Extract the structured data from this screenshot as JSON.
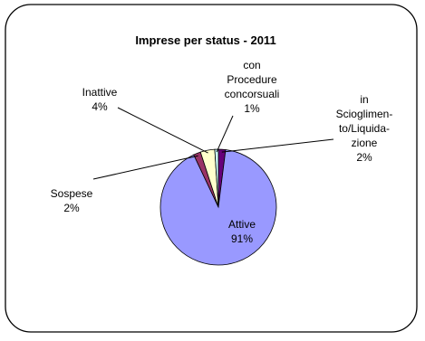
{
  "chart_data": {
    "type": "pie",
    "title": "Imprese per status - 2011",
    "start": "top",
    "direction": "clockwise",
    "slices": [
      {
        "label_lines": [
          "in",
          "Scioglimen-",
          "to/Liquida-",
          "zione"
        ],
        "percent_label": "2%",
        "value": 2,
        "color": "#66007a"
      },
      {
        "label_lines": [
          "Attive"
        ],
        "percent_label": "91%",
        "value": 91,
        "color": "#9999ff"
      },
      {
        "label_lines": [
          "Sospese"
        ],
        "percent_label": "2%",
        "value": 2,
        "color": "#993366"
      },
      {
        "label_lines": [
          "Inattive"
        ],
        "percent_label": "4%",
        "value": 4,
        "color": "#ffffcc"
      },
      {
        "label_lines": [
          "con",
          "Procedure",
          "concorsuali"
        ],
        "percent_label": "1%",
        "value": 1,
        "color": "#ccffff"
      }
    ]
  }
}
